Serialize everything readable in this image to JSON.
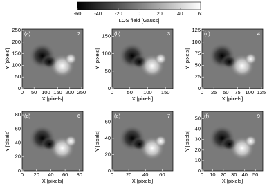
{
  "chart_data": [
    {
      "type": "colorbar",
      "title": "LOS field [Gauss]",
      "xlim": [
        -60,
        60
      ],
      "xticks": [
        -60,
        -40,
        -20,
        0,
        20,
        40,
        60
      ]
    },
    {
      "type": "image",
      "panel_label": "(a)",
      "annotation": "2",
      "xlabel": "X [pixels]",
      "ylabel": "Y [pixels]",
      "xlim": [
        0,
        256
      ],
      "ylim": [
        0,
        256
      ],
      "xticks": [
        0,
        50,
        100,
        150,
        200,
        250
      ],
      "yticks": [
        0,
        50,
        100,
        150,
        200,
        250
      ]
    },
    {
      "type": "image",
      "panel_label": "(b)",
      "annotation": "3",
      "xlabel": "X [pixels]",
      "ylabel": "Y [pixels]",
      "xlim": [
        0,
        171
      ],
      "ylim": [
        0,
        171
      ],
      "xticks": [
        0,
        50,
        100,
        150
      ],
      "yticks": [
        0,
        50,
        100,
        150
      ]
    },
    {
      "type": "image",
      "panel_label": "(c)",
      "annotation": "4",
      "xlabel": "X [pixels]",
      "ylabel": "Y [pixels]",
      "xlim": [
        0,
        128
      ],
      "ylim": [
        0,
        128
      ],
      "xticks": [
        0,
        25,
        50,
        75,
        100,
        125
      ],
      "yticks": [
        0,
        25,
        50,
        75,
        100,
        125
      ]
    },
    {
      "type": "image",
      "panel_label": "(d)",
      "annotation": "6",
      "xlabel": "X [pixels]",
      "ylabel": "Y [pixels]",
      "xlim": [
        0,
        85
      ],
      "ylim": [
        0,
        85
      ],
      "xticks": [
        0,
        20,
        40,
        60,
        80
      ],
      "yticks": [
        0,
        20,
        40,
        60,
        80
      ]
    },
    {
      "type": "image",
      "panel_label": "(e)",
      "annotation": "7",
      "xlabel": "X [pixels]",
      "ylabel": "Y [pixels]",
      "xlim": [
        0,
        73
      ],
      "ylim": [
        0,
        73
      ],
      "xticks": [
        0,
        20,
        40,
        60
      ],
      "yticks": [
        0,
        20,
        40,
        60
      ]
    },
    {
      "type": "image",
      "panel_label": "(f)",
      "annotation": "9",
      "xlabel": "X [pixels]",
      "ylabel": "Y [pixels]",
      "xlim": [
        0,
        57
      ],
      "ylim": [
        0,
        57
      ],
      "xticks": [
        0,
        10,
        20,
        30,
        40,
        50
      ],
      "yticks": [
        0,
        10,
        20,
        30,
        40,
        50
      ]
    }
  ]
}
